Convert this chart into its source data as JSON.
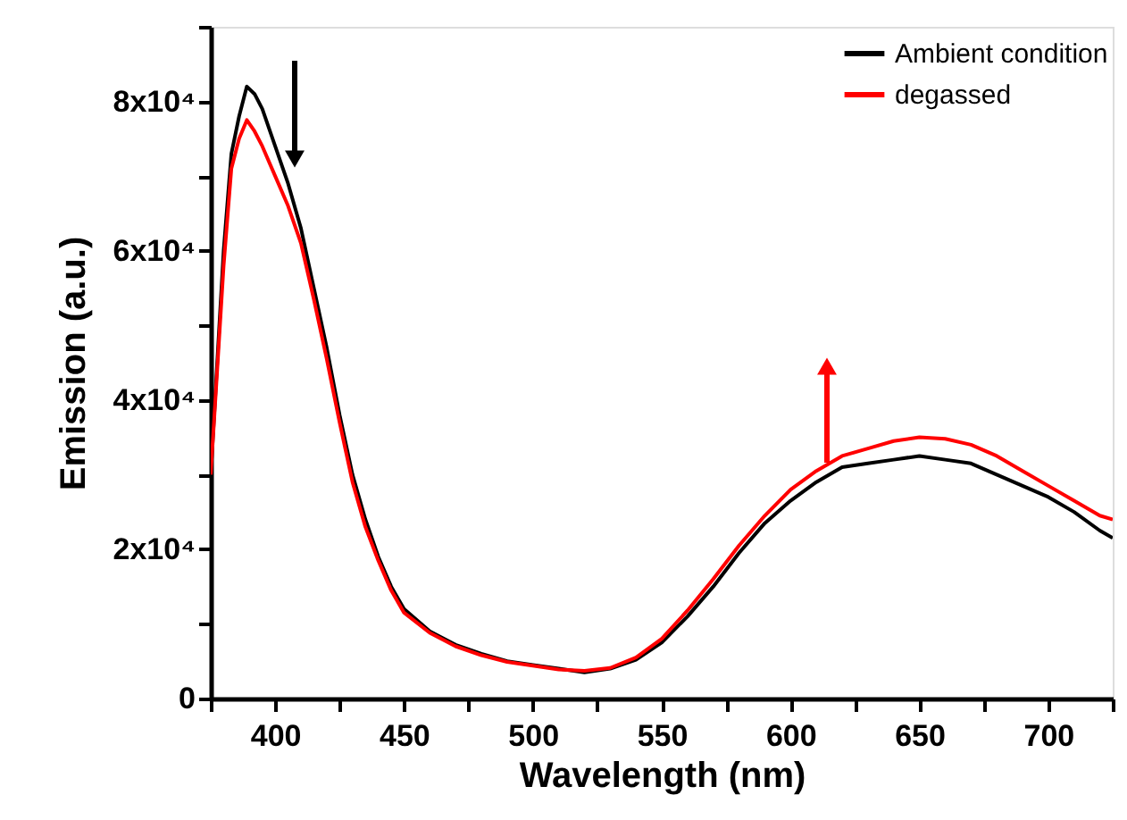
{
  "chart_data": {
    "type": "line",
    "xlabel": "Wavelength (nm)",
    "ylabel": "Emission (a.u.)",
    "x": [
      375,
      380,
      383,
      386,
      389,
      392,
      395,
      400,
      405,
      410,
      415,
      420,
      425,
      430,
      435,
      440,
      445,
      450,
      460,
      470,
      480,
      490,
      500,
      510,
      520,
      530,
      540,
      550,
      560,
      570,
      580,
      590,
      600,
      610,
      620,
      630,
      640,
      650,
      660,
      670,
      680,
      690,
      700,
      710,
      720,
      725
    ],
    "series": [
      {
        "name": "Ambient condition",
        "color": "#000000",
        "values": [
          30000,
          60000,
          73000,
          78000,
          82000,
          81000,
          79000,
          74000,
          69000,
          63000,
          55000,
          47000,
          38000,
          30000,
          24000,
          19000,
          15000,
          12000,
          9000,
          7200,
          6000,
          5000,
          4500,
          4000,
          3500,
          4000,
          5200,
          7500,
          11000,
          15000,
          19500,
          23500,
          26500,
          29000,
          31000,
          31500,
          32000,
          32500,
          32000,
          31500,
          30000,
          28500,
          27000,
          25000,
          22500,
          21500
        ]
      },
      {
        "name": "degassed",
        "color": "#ff0000",
        "values": [
          30000,
          58000,
          71000,
          75000,
          77500,
          76000,
          74000,
          70000,
          66000,
          61000,
          53500,
          45500,
          37000,
          29000,
          23000,
          18500,
          14500,
          11500,
          8800,
          7000,
          5800,
          4900,
          4400,
          3900,
          3700,
          4100,
          5500,
          8000,
          11800,
          16000,
          20500,
          24500,
          28000,
          30500,
          32500,
          33500,
          34500,
          35000,
          34800,
          34000,
          32500,
          30500,
          28500,
          26500,
          24500,
          24000
        ]
      }
    ],
    "xlim": [
      375,
      725
    ],
    "xticks": [
      {
        "value": 375,
        "label": null
      },
      400,
      {
        "value": 425,
        "label": null
      },
      450,
      {
        "value": 475,
        "label": null
      },
      500,
      {
        "value": 525,
        "label": null
      },
      550,
      {
        "value": 575,
        "label": null
      },
      600,
      {
        "value": 625,
        "label": null
      },
      650,
      {
        "value": 675,
        "label": null
      },
      700,
      {
        "value": 725,
        "label": null
      }
    ],
    "ylim": [
      0,
      90000
    ],
    "yticks": [
      {
        "value": 0,
        "label": "0"
      },
      {
        "value": 10000,
        "label": null
      },
      {
        "value": 20000,
        "label": "2x10⁴"
      },
      {
        "value": 30000,
        "label": null
      },
      {
        "value": 40000,
        "label": "4x10⁴"
      },
      {
        "value": 50000,
        "label": null
      },
      {
        "value": 60000,
        "label": "6x10⁴"
      },
      {
        "value": 70000,
        "label": null
      },
      {
        "value": 80000,
        "label": "8x10⁴"
      },
      {
        "value": 90000,
        "label": null
      }
    ],
    "legend": "top right",
    "grid": false,
    "marker": "none",
    "line_style": "solid"
  }
}
